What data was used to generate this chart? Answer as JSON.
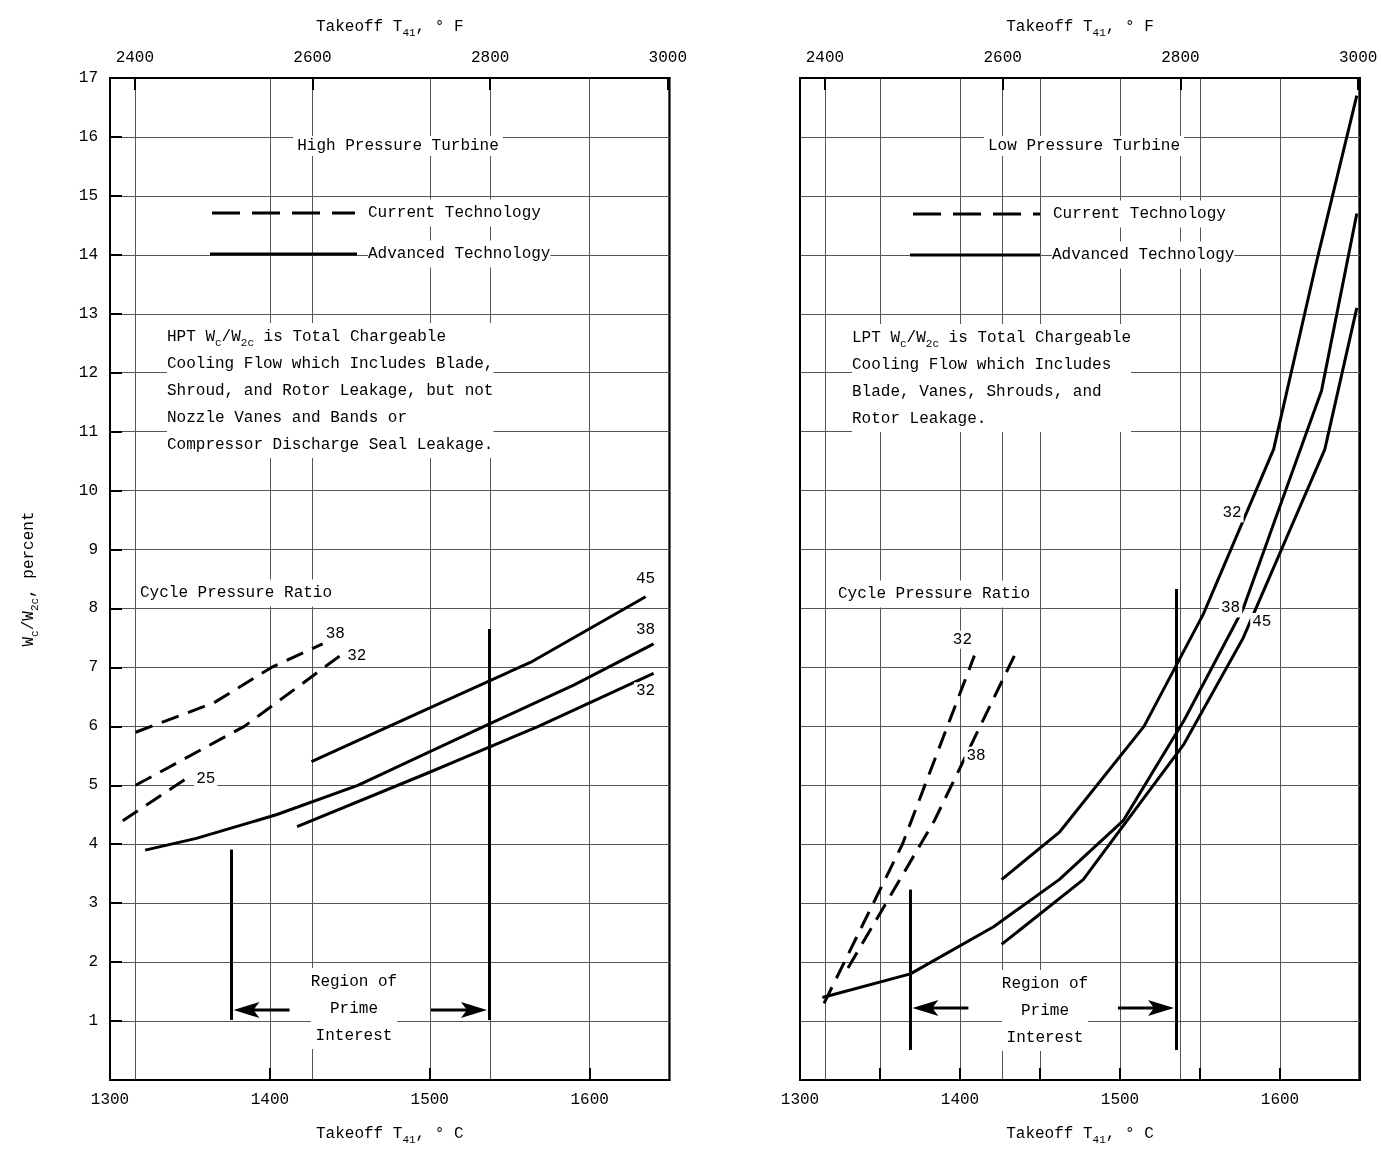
{
  "chart_data": [
    {
      "type": "line",
      "title": "High Pressure Turbine",
      "xlabel": "Takeoff T$_{41}$, ° C",
      "x2label": "Takeoff T$_{41}$, ° F",
      "ylabel": "W$_{c}$/W$_{2c}$, percent",
      "xlim": [
        1300,
        1650
      ],
      "xticks": [
        1300,
        1400,
        1500,
        1600
      ],
      "x2lim": [
        2372,
        3002
      ],
      "x2ticks": [
        2400,
        2600,
        2800,
        3000
      ],
      "ylim": [
        0,
        17
      ],
      "yticks": [
        1,
        2,
        3,
        4,
        5,
        6,
        7,
        8,
        9,
        10,
        11,
        12,
        13,
        14,
        15,
        16,
        17
      ],
      "grid": true,
      "marker": "none",
      "series": [
        {
          "name": "38",
          "color": "#000000",
          "line_style": "dashed",
          "x": [
            1316,
            1365,
            1401,
            1433
          ],
          "values": [
            5.9,
            6.4,
            7.0,
            7.4
          ]
        },
        {
          "name": "32",
          "color": "#000000",
          "line_style": "dashed",
          "x": [
            1316,
            1384,
            1444
          ],
          "values": [
            5.0,
            6.0,
            7.2
          ]
        },
        {
          "name": "25",
          "color": "#000000",
          "line_style": "dashed",
          "x": [
            1308,
            1347
          ],
          "values": [
            4.4,
            5.1
          ]
        },
        {
          "name": "45",
          "color": "#000000",
          "line_style": "solid",
          "x": [
            1426,
            1499,
            1564,
            1635
          ],
          "values": [
            5.4,
            6.3,
            7.1,
            8.2
          ]
        },
        {
          "name": "38",
          "color": "#000000",
          "line_style": "solid",
          "x": [
            1322,
            1354,
            1404,
            1455,
            1534,
            1590,
            1640
          ],
          "values": [
            3.9,
            4.1,
            4.5,
            5.0,
            6.0,
            6.7,
            7.4
          ]
        },
        {
          "name": "32",
          "color": "#000000",
          "line_style": "solid",
          "x": [
            1417,
            1498,
            1568,
            1640
          ],
          "values": [
            4.3,
            5.2,
            6.0,
            6.9
          ]
        }
      ],
      "ref_lines": [
        {
          "axis": "x",
          "value": 1376,
          "color": "#000000"
        },
        {
          "axis": "x",
          "value": 1537,
          "color": "#000000"
        }
      ],
      "annotations": [
        "Current Technology",
        "Advanced Technology",
        "HPT W$_{c}$/W$_{2c}$ is Total Chargeable\nCooling Flow which Includes Blade,\nShroud, and Rotor Leakage, but not\nNozzle Vanes and Bands or\nCompressor Discharge Seal Leakage.",
        "Cycle Pressure Ratio",
        "Region of\nPrime\nInterest"
      ]
    },
    {
      "type": "line",
      "title": "Low Pressure Turbine",
      "xlabel": "Takeoff T$_{41}$, ° C",
      "x2label": "Takeoff T$_{41}$, ° F",
      "xlim": [
        1300,
        1650
      ],
      "xticks": [
        1300,
        {
          "value": 1350,
          "label": null
        },
        1400,
        {
          "value": 1450,
          "label": null
        },
        1500,
        {
          "value": 1550,
          "label": null
        },
        1600
      ],
      "x2lim": [
        2372,
        3002
      ],
      "x2ticks": [
        2400,
        2600,
        2800,
        3000
      ],
      "ylim": [
        0,
        17
      ],
      "yticks": [
        1,
        2,
        3,
        4,
        5,
        6,
        7,
        8,
        9,
        10,
        11,
        12,
        13,
        14,
        15,
        16,
        17
      ],
      "tick_labels": "x",
      "grid": true,
      "marker": "none",
      "series": [
        {
          "name": "32",
          "color": "#000000",
          "line_style": "dashed",
          "x": [
            1315,
            1364,
            1409
          ],
          "values": [
            1.3,
            4.0,
            7.2
          ]
        },
        {
          "name": "38",
          "color": "#000000",
          "line_style": "dashed",
          "x": [
            1330,
            1384,
            1434
          ],
          "values": [
            1.9,
            4.4,
            7.2
          ]
        },
        {
          "name": "32",
          "color": "#000000",
          "line_style": "solid",
          "x": [
            1426,
            1462,
            1515,
            1552,
            1596,
            1623,
            1648
          ],
          "values": [
            3.4,
            4.2,
            6.0,
            7.9,
            10.7,
            13.9,
            16.7
          ]
        },
        {
          "name": "38",
          "color": "#000000",
          "line_style": "solid",
          "x": [
            1314,
            1369,
            1421,
            1462,
            1502,
            1540,
            1577,
            1626,
            1648
          ],
          "values": [
            1.4,
            1.8,
            2.6,
            3.4,
            4.4,
            6.1,
            8.0,
            11.7,
            14.7
          ]
        },
        {
          "name": "45",
          "color": "#000000",
          "line_style": "solid",
          "x": [
            1426,
            1477,
            1540,
            1577,
            1628,
            1648
          ],
          "values": [
            2.3,
            3.4,
            5.7,
            7.5,
            10.7,
            13.1
          ]
        }
      ],
      "ref_lines": [
        {
          "axis": "x",
          "value": 1369,
          "color": "#000000"
        },
        {
          "axis": "x",
          "value": 1535,
          "color": "#000000"
        }
      ],
      "annotations": [
        "Current Technology",
        "Advanced Technology",
        "LPT W$_{c}$/W$_{2c}$ is Total Chargeable\nCooling Flow which Includes\nBlade, Vanes, Shrouds, and\nRotor Leakage.",
        "Cycle Pressure Ratio",
        "Region of\nPrime\nInterest"
      ]
    }
  ]
}
